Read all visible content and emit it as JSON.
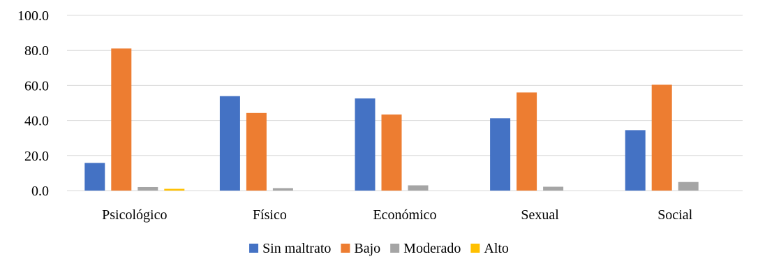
{
  "chart_data": {
    "type": "bar",
    "title": "",
    "xlabel": "",
    "ylabel": "",
    "categories": [
      "Psicológico",
      "Físico",
      "Económico",
      "Sexual",
      "Social"
    ],
    "ylim": [
      0,
      100
    ],
    "yticks": [
      "0.0",
      "20.0",
      "40.0",
      "60.0",
      "80.0",
      "100.0"
    ],
    "grid": true,
    "legend": "bottom",
    "series": [
      {
        "name": "Sin maltrato",
        "color": "#4472C4",
        "values": [
          15.8,
          53.9,
          52.6,
          41.3,
          34.5
        ]
      },
      {
        "name": "Bajo",
        "color": "#ED7D31",
        "values": [
          81.1,
          44.3,
          43.4,
          56.0,
          60.4
        ]
      },
      {
        "name": "Moderado",
        "color": "#A5A5A5",
        "values": [
          2.0,
          1.4,
          3.0,
          2.2,
          4.9
        ]
      },
      {
        "name": "Alto",
        "color": "#FFC000",
        "values": [
          1.0,
          0.0,
          0.0,
          0.0,
          0.0
        ]
      }
    ]
  }
}
